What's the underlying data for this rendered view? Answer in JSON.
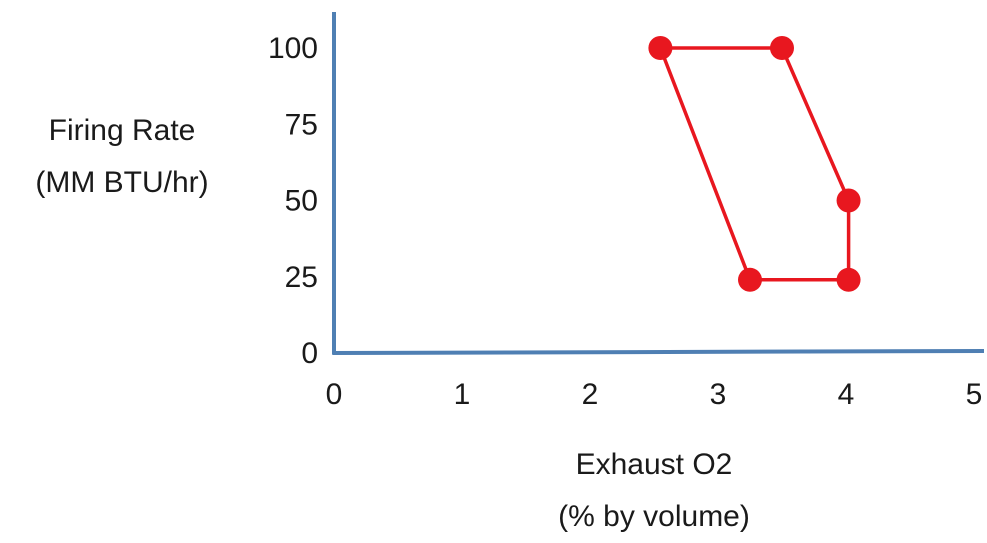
{
  "chart_data": {
    "type": "line",
    "title": "",
    "ylabel_lines": [
      "Firing Rate",
      "(MM BTU/hr)"
    ],
    "xlabel_lines": [
      "Exhaust O2",
      "(% by volume)"
    ],
    "xlim": [
      0,
      5
    ],
    "ylim": [
      0,
      100
    ],
    "x_ticks": [
      "0",
      "1",
      "2",
      "3",
      "4",
      "5"
    ],
    "y_ticks": [
      "0",
      "25",
      "50",
      "75",
      "100"
    ],
    "grid": false,
    "legend": "none",
    "axis_color": "#4f7fb3",
    "series": [
      {
        "color": "#e8171f",
        "closed": true,
        "points": [
          {
            "x": 2.55,
            "y": 100
          },
          {
            "x": 3.5,
            "y": 100
          },
          {
            "x": 4.02,
            "y": 50
          },
          {
            "x": 4.02,
            "y": 24
          },
          {
            "x": 3.25,
            "y": 24
          }
        ]
      }
    ]
  }
}
